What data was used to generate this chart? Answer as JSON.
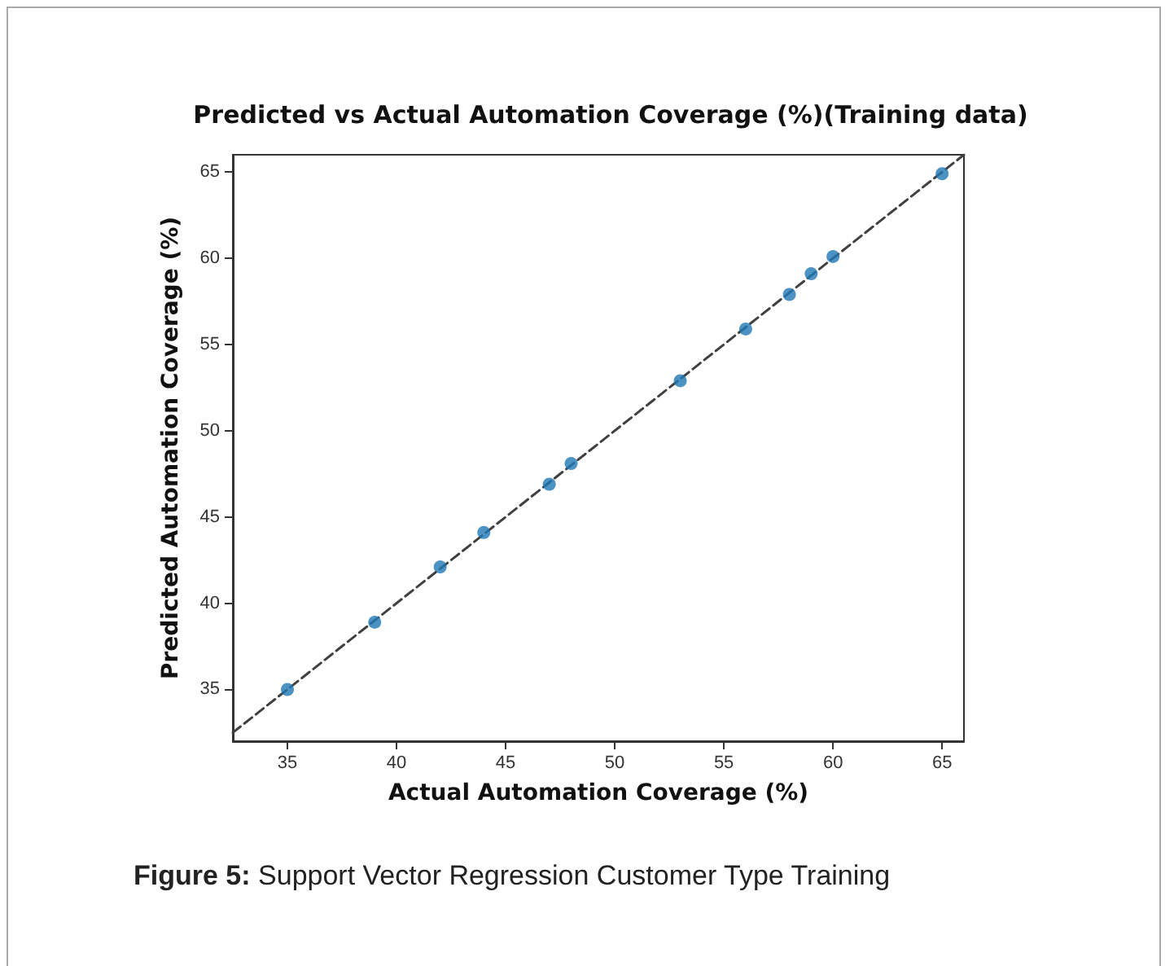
{
  "chart_data": {
    "type": "scatter",
    "title": "Predicted vs Actual Automation Coverage (%)(Training data)",
    "xlabel": "Actual Automation Coverage (%)",
    "ylabel": "Predicted Automation Coverage (%)",
    "annotations": [
      "Figure 5: Support Vector Regression Customer Type Training"
    ],
    "xlim": [
      32.5,
      66
    ],
    "ylim": [
      32,
      66
    ],
    "xticks": [
      35,
      40,
      45,
      50,
      55,
      60,
      65
    ],
    "yticks": [
      35,
      40,
      45,
      50,
      55,
      60,
      65
    ],
    "grid": false,
    "series": [
      {
        "color": "#1f77b4",
        "marker": "circle",
        "x": [
          35,
          39,
          42,
          44,
          47,
          48,
          53,
          56,
          58,
          59,
          60,
          65
        ],
        "values": [
          35,
          38.9,
          42.1,
          44.1,
          46.9,
          48.1,
          52.9,
          55.9,
          57.9,
          59.1,
          60.1,
          64.9
        ]
      },
      {
        "type": "line",
        "color": "#404040",
        "marker": "none",
        "line_style": "dashed",
        "x": [
          32.5,
          66
        ],
        "values": [
          32.5,
          66
        ]
      }
    ]
  }
}
